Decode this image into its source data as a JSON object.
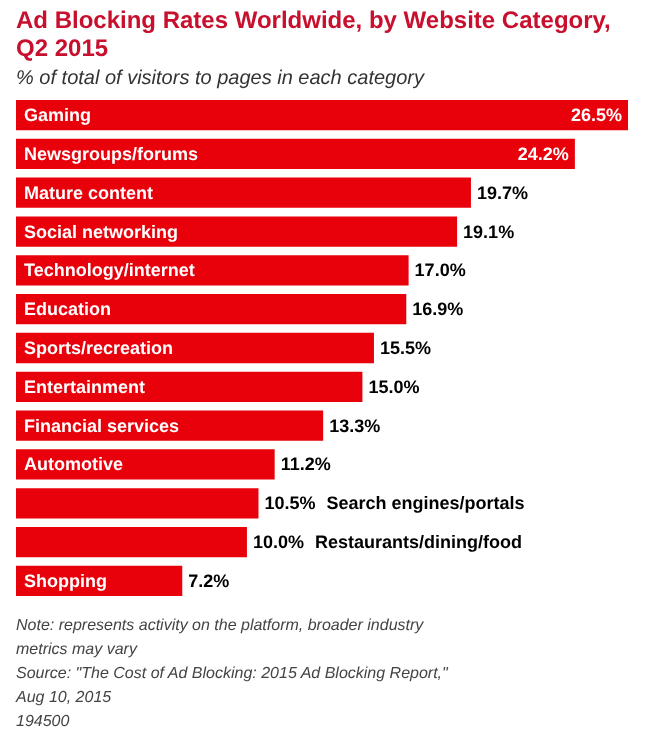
{
  "chart_data": {
    "type": "bar",
    "orientation": "horizontal",
    "title": "Ad Blocking Rates Worldwide, by Website Category, Q2 2015",
    "subtitle": "% of total of visitors to pages in each category",
    "categories": [
      "Gaming",
      "Newsgroups/forums",
      "Mature content",
      "Social networking",
      "Technology/internet",
      "Education",
      "Sports/recreation",
      "Entertainment",
      "Financial services",
      "Automotive",
      "Search engines/portals",
      "Restaurants/dining/food",
      "Shopping"
    ],
    "values": [
      26.5,
      24.2,
      19.7,
      19.1,
      17.0,
      16.9,
      15.5,
      15.0,
      13.3,
      11.2,
      10.5,
      10.0,
      7.2
    ],
    "value_labels": [
      "26.5%",
      "24.2%",
      "19.7%",
      "19.1%",
      "17.0%",
      "16.9%",
      "15.5%",
      "15.0%",
      "13.3%",
      "11.2%",
      "10.5%",
      "10.0%",
      "7.2%"
    ],
    "color": "#e8000b",
    "annotations": [
      "Note: represents activity on the platform, broader industry metrics may vary",
      "Source: \"The Cost of Ad Blocking: 2015 Ad Blocking Report,\" Aug 10, 2015",
      "194500"
    ]
  }
}
